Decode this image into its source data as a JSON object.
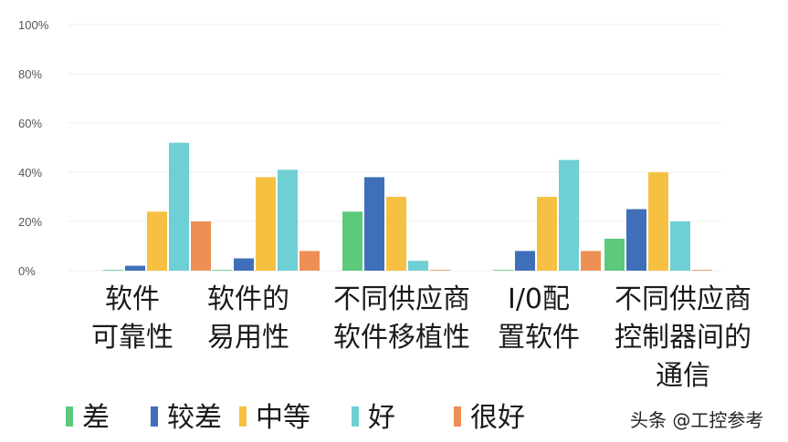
{
  "chart_data": {
    "type": "bar",
    "categories": [
      [
        "软件",
        "可靠性"
      ],
      [
        "软件的",
        "易用性"
      ],
      [
        "不同供应商",
        "软件移植性"
      ],
      [
        "I/0配",
        "置软件"
      ],
      [
        "不同供应商",
        "控制器间的",
        "通信"
      ]
    ],
    "series": [
      {
        "name": "差",
        "color": "#5cc97b",
        "values": [
          0,
          0,
          24,
          0,
          13
        ]
      },
      {
        "name": "较差",
        "color": "#3f6fb8",
        "values": [
          2,
          5,
          38,
          8,
          25
        ]
      },
      {
        "name": "中等",
        "color": "#f6c142",
        "values": [
          24,
          38,
          30,
          30,
          40
        ]
      },
      {
        "name": "好",
        "color": "#6ecfd4",
        "values": [
          52,
          41,
          4,
          45,
          20
        ]
      },
      {
        "name": "很好",
        "color": "#ee8f55",
        "values": [
          20,
          8,
          0,
          8,
          0
        ]
      }
    ],
    "yticks": [
      "0%",
      "20%",
      "40%",
      "60%",
      "80%",
      "100%"
    ],
    "ylim": [
      0,
      100
    ],
    "grid": true,
    "legend_position": "bottom"
  },
  "watermark": "头条 @工控参考"
}
